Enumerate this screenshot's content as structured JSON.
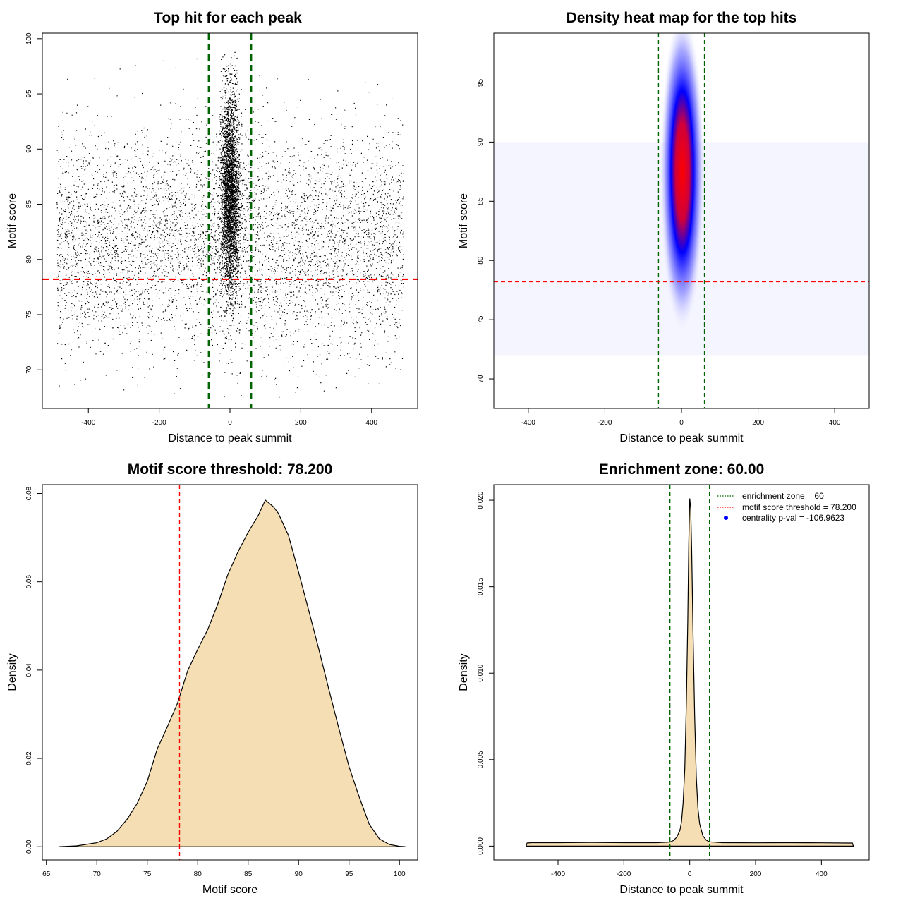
{
  "chart_data": [
    {
      "type": "scatter",
      "title": "Top hit for each peak",
      "xlabel": "Distance to peak summit",
      "ylabel": "Motif score",
      "xlim": [
        -530,
        530
      ],
      "ylim": [
        66.5,
        100.5
      ],
      "xticks": [
        -400,
        -200,
        0,
        200,
        400
      ],
      "yticks": [
        70,
        75,
        80,
        85,
        90,
        95,
        100
      ],
      "xtick_labels": [
        "-400",
        "-200",
        "0",
        "200",
        "400"
      ],
      "ytick_labels": [
        "70",
        "75",
        "80",
        "85",
        "90",
        "95",
        "100"
      ],
      "points_summary": {
        "central_cluster": {
          "x_mean": 0,
          "x_sd": 13,
          "y_mean": 86,
          "y_sd": 4.5,
          "y_range": [
            72,
            99
          ]
        },
        "background": {
          "x_range": [
            -490,
            490
          ],
          "y_mean": 81.5,
          "y_sd": 5,
          "y_range": [
            67.5,
            98.5
          ]
        }
      },
      "vlines": [
        -60,
        60
      ],
      "hline": 78.2,
      "colors": {
        "points": "#000000",
        "vlines": "#006400",
        "hline": "#ff0000"
      },
      "grid": false
    },
    {
      "type": "heatmap",
      "title": "Density heat map for the top hits",
      "xlabel": "Distance to peak summit",
      "ylabel": "Motif score",
      "xlim": [
        -490,
        490
      ],
      "ylim": [
        67.5,
        99.2
      ],
      "xticks": [
        -400,
        -200,
        0,
        200,
        400
      ],
      "yticks": [
        70,
        75,
        80,
        85,
        90,
        95
      ],
      "xtick_labels": [
        "-400",
        "-200",
        "0",
        "200",
        "400"
      ],
      "ytick_labels": [
        "70",
        "75",
        "80",
        "85",
        "90",
        "95"
      ],
      "density_peak": {
        "x": 2,
        "y": 87.5
      },
      "color_scale": [
        "#ffffff",
        "#0000ff",
        "#ff0000"
      ],
      "vlines": [
        -60,
        60
      ],
      "hline": 78.2,
      "colors": {
        "vlines": "#006400",
        "hline": "#ff0000"
      }
    },
    {
      "type": "area",
      "title": "Motif score threshold: 78.200",
      "xlabel": "Motif score",
      "ylabel": "Density",
      "xlim": [
        64.6,
        101.8
      ],
      "ylim": [
        -0.003,
        0.082
      ],
      "xticks": [
        65,
        70,
        75,
        80,
        85,
        90,
        95,
        100
      ],
      "yticks": [
        0,
        0.02,
        0.04,
        0.06,
        0.08
      ],
      "xtick_labels": [
        "65",
        "70",
        "75",
        "80",
        "85",
        "90",
        "95",
        "100"
      ],
      "ytick_labels": [
        "0.00",
        "0.02",
        "0.04",
        "0.06",
        "0.08"
      ],
      "x": [
        66.2,
        68,
        70,
        71,
        72,
        73,
        74,
        75,
        76,
        77,
        78,
        79,
        80,
        81,
        82,
        83,
        84,
        85,
        86,
        86.7,
        87.5,
        88,
        89,
        90,
        91,
        92,
        93,
        94,
        95,
        96,
        97,
        98,
        99,
        100,
        100.6
      ],
      "y": [
        0,
        0.0002,
        0.0009,
        0.0018,
        0.0035,
        0.0062,
        0.0098,
        0.0148,
        0.0222,
        0.0272,
        0.0325,
        0.0398,
        0.0447,
        0.0492,
        0.055,
        0.0617,
        0.0668,
        0.0712,
        0.075,
        0.0785,
        0.077,
        0.0755,
        0.0705,
        0.0622,
        0.0536,
        0.0448,
        0.0356,
        0.0267,
        0.0181,
        0.0113,
        0.0051,
        0.0018,
        0.0005,
        0.0001,
        0
      ],
      "vline": 78.2,
      "colors": {
        "fill": "#f5deb3",
        "line": "#000000",
        "vline": "#ff0000"
      }
    },
    {
      "type": "area",
      "title": "Enrichment zone: 60.00",
      "xlabel": "Distance to peak summit",
      "ylabel": "Density",
      "xlim": [
        -595,
        545
      ],
      "ylim": [
        -0.0008,
        0.0209
      ],
      "xticks": [
        -400,
        -200,
        0,
        200,
        400
      ],
      "yticks": [
        0,
        0.005,
        0.01,
        0.015,
        0.02
      ],
      "xtick_labels": [
        "-400",
        "-200",
        "0",
        "200",
        "400"
      ],
      "ytick_labels": [
        "0.000",
        "0.005",
        "0.010",
        "0.015",
        "0.020"
      ],
      "x": [
        -497,
        -494,
        -480,
        -400,
        -300,
        -200,
        -100,
        -60,
        -50,
        -40,
        -30,
        -25,
        -20,
        -15,
        -10,
        -6,
        -3,
        0,
        3,
        6,
        10,
        15,
        20,
        25,
        30,
        40,
        50,
        60,
        100,
        200,
        300,
        400,
        480,
        494,
        497
      ],
      "y": [
        0,
        0.00018,
        0.0002,
        0.0002,
        0.00021,
        0.0002,
        0.0002,
        0.00023,
        0.00032,
        0.0005,
        0.0009,
        0.0014,
        0.0025,
        0.0045,
        0.0085,
        0.013,
        0.0175,
        0.0201,
        0.0195,
        0.017,
        0.0125,
        0.0075,
        0.004,
        0.0022,
        0.0013,
        0.0006,
        0.00035,
        0.00025,
        0.0002,
        0.00019,
        0.0002,
        0.00019,
        0.00018,
        0.00018,
        0
      ],
      "vlines": [
        -60,
        60
      ],
      "legend": {
        "position": "top-right",
        "items": [
          {
            "label": "enrichment zone = 60",
            "color": "#006400",
            "style": "dotted-line"
          },
          {
            "label": "motif score threshold = 78.200",
            "color": "#ff0000",
            "style": "dotted-line"
          },
          {
            "label": "centrality p-val = -106.9623",
            "color": "#0000ff",
            "style": "point"
          }
        ]
      },
      "colors": {
        "fill": "#f5deb3",
        "line": "#000000",
        "vlines": "#006400"
      }
    }
  ]
}
